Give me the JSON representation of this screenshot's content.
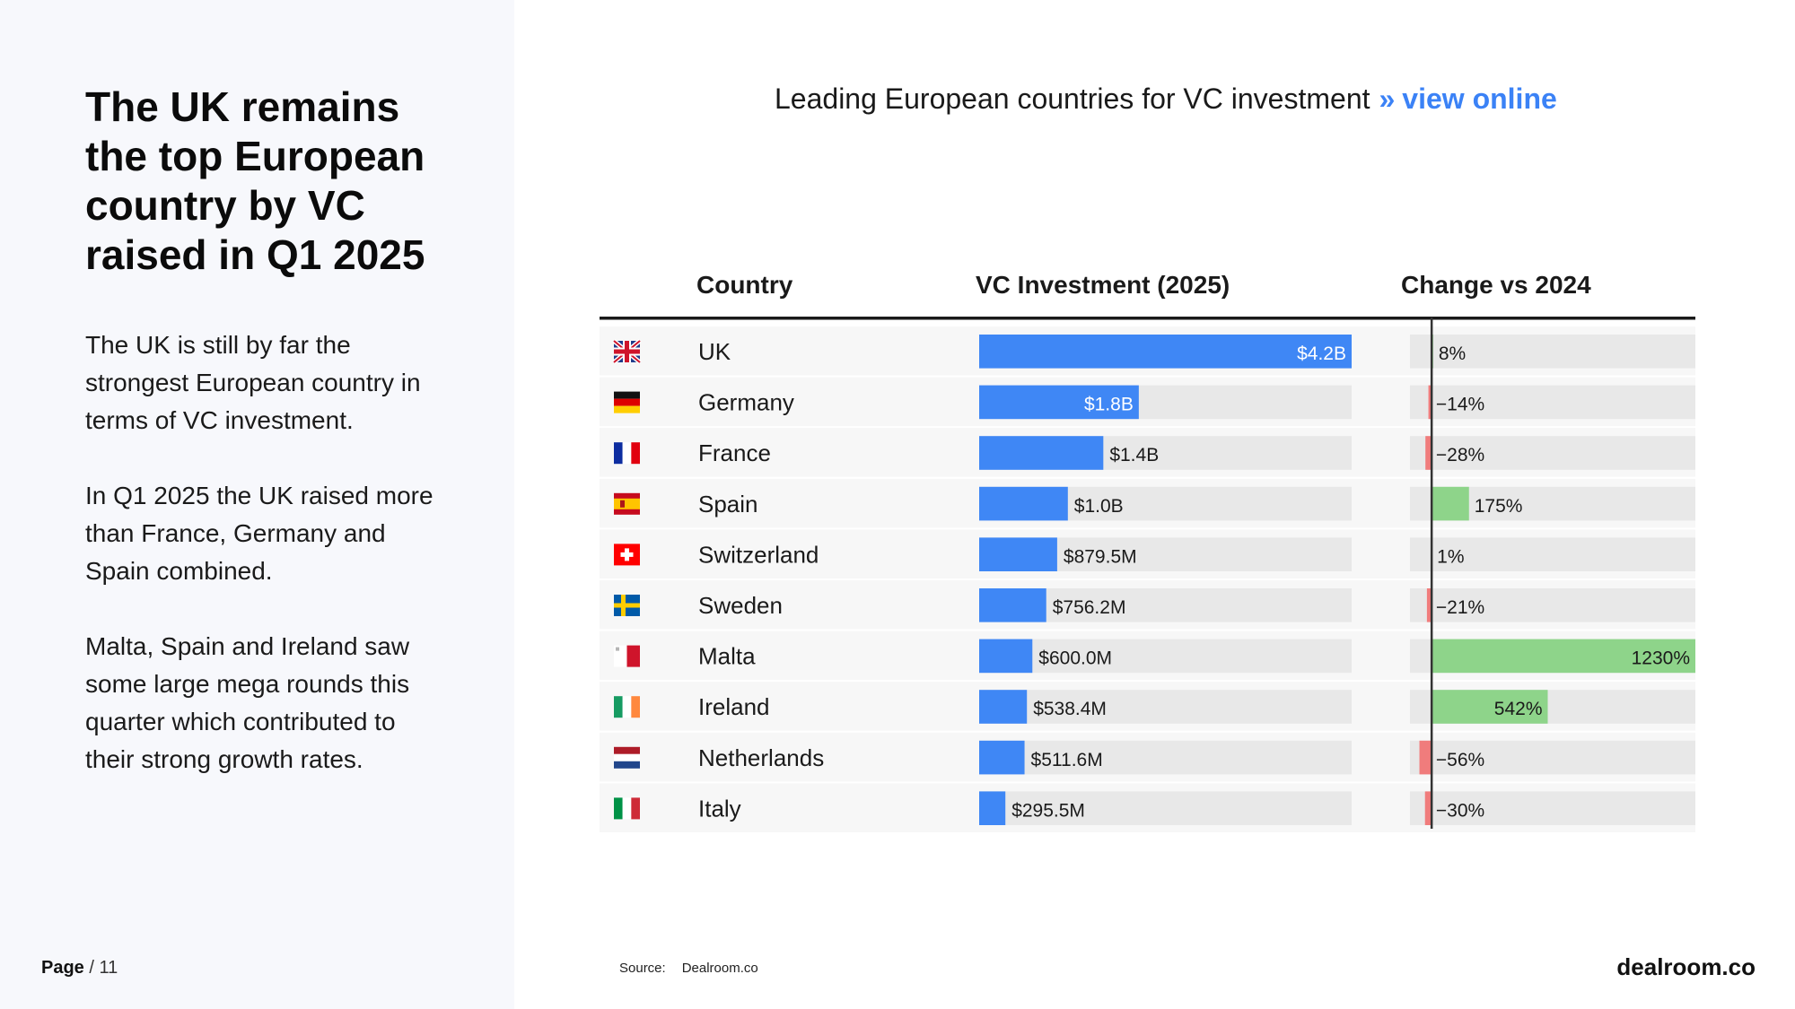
{
  "left": {
    "headline": "The UK remains the top European country by VC raised in Q1 2025",
    "paragraphs": [
      "The UK is still by far the strongest European country in terms of VC investment.",
      "In Q1 2025 the UK raised more than France, Germany and Spain combined.",
      "Malta, Spain and Ireland saw some large mega rounds this quarter which contributed to their strong growth rates."
    ]
  },
  "footer": {
    "page_label": "Page",
    "page_rest": "/ 11",
    "source_label": "Source:",
    "source_value": "Dealroom.co",
    "brand": "dealroom.co"
  },
  "chart_header": {
    "title": "Leading European countries for VC investment",
    "separator": "»",
    "link_text": "view online"
  },
  "chart_data": {
    "type": "table",
    "columns": [
      "Country",
      "VC Investment (2025)",
      "Change vs 2024"
    ],
    "rows": [
      {
        "flag": "uk-flag-icon",
        "country": "UK",
        "investment_usd_m": 4200,
        "investment_label": "$4.2B",
        "change_pct": 8,
        "change_label": "8%"
      },
      {
        "flag": "germany-flag-icon",
        "country": "Germany",
        "investment_usd_m": 1800,
        "investment_label": "$1.8B",
        "change_pct": -14,
        "change_label": "−14%"
      },
      {
        "flag": "france-flag-icon",
        "country": "France",
        "investment_usd_m": 1400,
        "investment_label": "$1.4B",
        "change_pct": -28,
        "change_label": "−28%"
      },
      {
        "flag": "spain-flag-icon",
        "country": "Spain",
        "investment_usd_m": 1000,
        "investment_label": "$1.0B",
        "change_pct": 175,
        "change_label": "175%"
      },
      {
        "flag": "switzerland-flag-icon",
        "country": "Switzerland",
        "investment_usd_m": 879.5,
        "investment_label": "$879.5M",
        "change_pct": 1,
        "change_label": "1%"
      },
      {
        "flag": "sweden-flag-icon",
        "country": "Sweden",
        "investment_usd_m": 756.2,
        "investment_label": "$756.2M",
        "change_pct": -21,
        "change_label": "−21%"
      },
      {
        "flag": "malta-flag-icon",
        "country": "Malta",
        "investment_usd_m": 600.0,
        "investment_label": "$600.0M",
        "change_pct": 1230,
        "change_label": "1230%"
      },
      {
        "flag": "ireland-flag-icon",
        "country": "Ireland",
        "investment_usd_m": 538.4,
        "investment_label": "$538.4M",
        "change_pct": 542,
        "change_label": "542%"
      },
      {
        "flag": "netherlands-flag-icon",
        "country": "Netherlands",
        "investment_usd_m": 511.6,
        "investment_label": "$511.6M",
        "change_pct": -56,
        "change_label": "−56%"
      },
      {
        "flag": "italy-flag-icon",
        "country": "Italy",
        "investment_usd_m": 295.5,
        "investment_label": "$295.5M",
        "change_pct": -30,
        "change_label": "−30%"
      }
    ],
    "investment_max_usd_m": 4200,
    "change_range_pct": [
      -100,
      1230
    ],
    "colors": {
      "investment_bar": "#3f87f5",
      "positive_change": "#8ed48a",
      "negative_change": "#f07c7c",
      "bar_track": "#e8e8e8",
      "row_alt": "#f7f7f7"
    }
  }
}
